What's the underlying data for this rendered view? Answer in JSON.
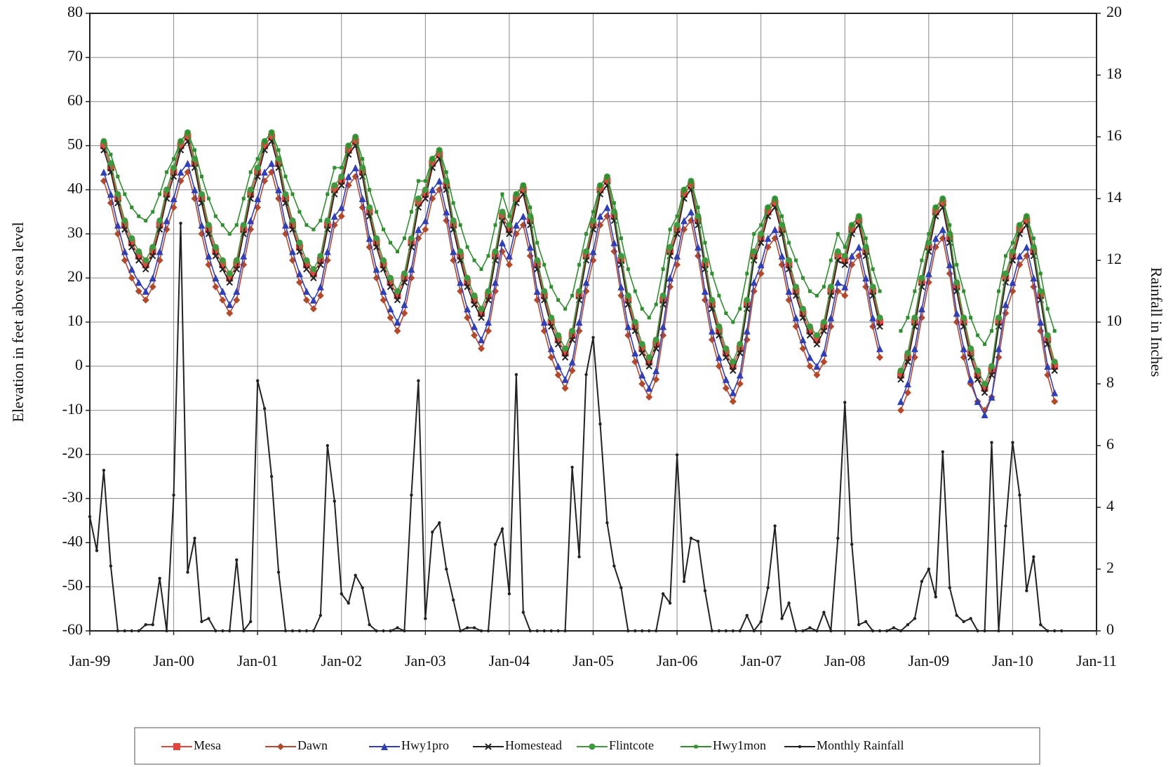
{
  "chart_data": {
    "type": "line",
    "y_label": "Elevation in feet above sea level",
    "y2_label": "Rainfall in Inches",
    "xlim": [
      "1999-01",
      "2011-01"
    ],
    "xticks": [
      {
        "value": "1999-01",
        "label": "Jan-99"
      },
      {
        "value": "2000-01",
        "label": "Jan-00"
      },
      {
        "value": "2001-01",
        "label": "Jan-01"
      },
      {
        "value": "2002-01",
        "label": "Jan-02"
      },
      {
        "value": "2003-01",
        "label": "Jan-03"
      },
      {
        "value": "2004-01",
        "label": "Jan-04"
      },
      {
        "value": "2005-01",
        "label": "Jan-05"
      },
      {
        "value": "2006-01",
        "label": "Jan-06"
      },
      {
        "value": "2007-01",
        "label": "Jan-07"
      },
      {
        "value": "2008-01",
        "label": "Jan-08"
      },
      {
        "value": "2009-01",
        "label": "Jan-09"
      },
      {
        "value": "2010-01",
        "label": "Jan-10"
      },
      {
        "value": "2011-01",
        "label": "Jan-11"
      }
    ],
    "ylim": [
      -60,
      80
    ],
    "yticks": [
      -60,
      -50,
      -40,
      -30,
      -20,
      -10,
      0,
      10,
      20,
      30,
      40,
      50,
      60,
      70,
      80
    ],
    "y2lim": [
      0,
      20
    ],
    "y2ticks": [
      0,
      2,
      4,
      6,
      8,
      10,
      12,
      14,
      16,
      18,
      20
    ],
    "grid": true,
    "legend": "bottom",
    "x": [
      "1999-01",
      "1999-02",
      "1999-03",
      "1999-04",
      "1999-05",
      "1999-06",
      "1999-07",
      "1999-08",
      "1999-09",
      "1999-10",
      "1999-11",
      "1999-12",
      "2000-01",
      "2000-02",
      "2000-03",
      "2000-04",
      "2000-05",
      "2000-06",
      "2000-07",
      "2000-08",
      "2000-09",
      "2000-10",
      "2000-11",
      "2000-12",
      "2001-01",
      "2001-02",
      "2001-03",
      "2001-04",
      "2001-05",
      "2001-06",
      "2001-07",
      "2001-08",
      "2001-09",
      "2001-10",
      "2001-11",
      "2001-12",
      "2002-01",
      "2002-02",
      "2002-03",
      "2002-04",
      "2002-05",
      "2002-06",
      "2002-07",
      "2002-08",
      "2002-09",
      "2002-10",
      "2002-11",
      "2002-12",
      "2003-01",
      "2003-02",
      "2003-03",
      "2003-04",
      "2003-05",
      "2003-06",
      "2003-07",
      "2003-08",
      "2003-09",
      "2003-10",
      "2003-11",
      "2003-12",
      "2004-01",
      "2004-02",
      "2004-03",
      "2004-04",
      "2004-05",
      "2004-06",
      "2004-07",
      "2004-08",
      "2004-09",
      "2004-10",
      "2004-11",
      "2004-12",
      "2005-01",
      "2005-02",
      "2005-03",
      "2005-04",
      "2005-05",
      "2005-06",
      "2005-07",
      "2005-08",
      "2005-09",
      "2005-10",
      "2005-11",
      "2005-12",
      "2006-01",
      "2006-02",
      "2006-03",
      "2006-04",
      "2006-05",
      "2006-06",
      "2006-07",
      "2006-08",
      "2006-09",
      "2006-10",
      "2006-11",
      "2006-12",
      "2007-01",
      "2007-02",
      "2007-03",
      "2007-04",
      "2007-05",
      "2007-06",
      "2007-07",
      "2007-08",
      "2007-09",
      "2007-10",
      "2007-11",
      "2007-12",
      "2008-01",
      "2008-02",
      "2008-03",
      "2008-04",
      "2008-05",
      "2008-06",
      "2008-07",
      "2008-08",
      "2008-09",
      "2008-10",
      "2008-11",
      "2008-12",
      "2009-01",
      "2009-02",
      "2009-03",
      "2009-04",
      "2009-05",
      "2009-06",
      "2009-07",
      "2009-08",
      "2009-09",
      "2009-10",
      "2009-11",
      "2009-12",
      "2010-01",
      "2010-02",
      "2010-03",
      "2010-04",
      "2010-05",
      "2010-06",
      "2010-07",
      "2010-08"
    ],
    "series": [
      {
        "name": "Mesa",
        "color": "#e8453c",
        "marker": "square",
        "values": [
          null,
          null,
          50,
          45,
          38,
          32,
          28,
          25,
          23,
          26,
          32,
          39,
          44,
          50,
          52,
          46,
          38,
          31,
          26,
          23,
          20,
          23,
          31,
          39,
          44,
          50,
          52,
          46,
          38,
          32,
          27,
          23,
          21,
          24,
          32,
          40,
          42,
          49,
          51,
          44,
          35,
          28,
          23,
          19,
          16,
          20,
          28,
          37,
          39,
          46,
          48,
          41,
          32,
          25,
          19,
          15,
          12,
          16,
          25,
          34,
          31,
          38,
          40,
          33,
          23,
          16,
          10,
          6,
          3,
          7,
          16,
          25,
          32,
          40,
          42,
          34,
          24,
          15,
          9,
          4,
          1,
          5,
          15,
          26,
          31,
          39,
          41,
          33,
          23,
          14,
          8,
          3,
          0,
          4,
          14,
          25,
          29,
          35,
          37,
          31,
          23,
          17,
          12,
          8,
          6,
          9,
          17,
          25,
          24,
          31,
          33,
          26,
          17,
          10,
          null,
          null,
          -2,
          2,
          10,
          19,
          27,
          35,
          37,
          29,
          18,
          10,
          3,
          -2,
          -5,
          -1,
          10,
          20,
          25,
          31,
          33,
          26,
          16,
          6,
          0,
          null
        ]
      },
      {
        "name": "Dawn",
        "color": "#b5482a",
        "marker": "diamond",
        "values": [
          null,
          null,
          42,
          37,
          30,
          24,
          20,
          17,
          15,
          18,
          24,
          31,
          36,
          42,
          44,
          38,
          30,
          23,
          18,
          15,
          12,
          15,
          23,
          31,
          36,
          42,
          44,
          38,
          30,
          24,
          19,
          15,
          13,
          16,
          24,
          32,
          34,
          41,
          43,
          36,
          27,
          20,
          15,
          11,
          8,
          12,
          20,
          29,
          31,
          38,
          40,
          33,
          24,
          17,
          11,
          7,
          4,
          8,
          17,
          26,
          23,
          30,
          32,
          25,
          15,
          8,
          2,
          -2,
          -5,
          -1,
          8,
          17,
          24,
          32,
          34,
          26,
          16,
          7,
          1,
          -4,
          -7,
          -3,
          7,
          18,
          23,
          31,
          33,
          25,
          15,
          6,
          0,
          -5,
          -8,
          -4,
          6,
          17,
          21,
          27,
          29,
          23,
          15,
          9,
          4,
          0,
          -2,
          1,
          9,
          17,
          16,
          23,
          25,
          18,
          9,
          2,
          null,
          null,
          -10,
          -6,
          2,
          11,
          19,
          27,
          29,
          21,
          10,
          2,
          -4,
          -8,
          -10,
          -7,
          2,
          12,
          17,
          23,
          25,
          18,
          8,
          -2,
          -8,
          null
        ]
      },
      {
        "name": "Hwy1pro",
        "color": "#2e3fb8",
        "marker": "triangle",
        "values": [
          null,
          null,
          44,
          39,
          32,
          26,
          22,
          19,
          17,
          20,
          26,
          33,
          38,
          44,
          46,
          40,
          32,
          25,
          20,
          17,
          14,
          17,
          25,
          33,
          38,
          44,
          46,
          40,
          32,
          26,
          21,
          17,
          15,
          18,
          26,
          34,
          36,
          43,
          45,
          38,
          29,
          22,
          17,
          13,
          10,
          14,
          22,
          31,
          33,
          40,
          42,
          35,
          26,
          19,
          13,
          9,
          6,
          10,
          19,
          28,
          25,
          32,
          34,
          27,
          17,
          10,
          4,
          0,
          -3,
          1,
          10,
          19,
          26,
          34,
          36,
          28,
          18,
          9,
          3,
          -2,
          -5,
          -1,
          9,
          20,
          25,
          33,
          35,
          27,
          17,
          8,
          2,
          -3,
          -6,
          -2,
          8,
          19,
          23,
          29,
          31,
          25,
          17,
          11,
          6,
          2,
          0,
          3,
          11,
          19,
          18,
          25,
          27,
          20,
          11,
          4,
          null,
          null,
          -8,
          -4,
          4,
          13,
          21,
          29,
          31,
          23,
          12,
          4,
          -3,
          -8,
          -11,
          -7,
          4,
          14,
          19,
          25,
          27,
          20,
          10,
          0,
          -6,
          null
        ]
      },
      {
        "name": "Homestead",
        "color": "#222222",
        "marker": "x",
        "values": [
          null,
          null,
          49,
          44,
          37,
          31,
          27,
          24,
          22,
          25,
          31,
          38,
          43,
          49,
          51,
          45,
          37,
          30,
          25,
          22,
          19,
          22,
          30,
          38,
          43,
          49,
          51,
          45,
          37,
          31,
          26,
          22,
          20,
          23,
          31,
          39,
          41,
          48,
          50,
          43,
          34,
          27,
          22,
          18,
          15,
          19,
          27,
          36,
          38,
          45,
          47,
          40,
          31,
          24,
          18,
          14,
          11,
          15,
          24,
          33,
          30,
          37,
          39,
          32,
          22,
          15,
          9,
          5,
          2,
          6,
          15,
          24,
          31,
          39,
          41,
          33,
          23,
          14,
          8,
          3,
          0,
          4,
          14,
          25,
          30,
          38,
          40,
          32,
          22,
          13,
          7,
          2,
          -1,
          3,
          13,
          24,
          28,
          34,
          36,
          30,
          22,
          16,
          11,
          7,
          5,
          8,
          16,
          24,
          23,
          30,
          32,
          25,
          16,
          9,
          null,
          null,
          -3,
          1,
          9,
          18,
          26,
          34,
          36,
          28,
          17,
          9,
          2,
          -3,
          -6,
          -2,
          9,
          19,
          24,
          30,
          32,
          25,
          15,
          5,
          -1,
          null
        ]
      },
      {
        "name": "Flintcote",
        "color": "#3f9a3f",
        "marker": "circle",
        "values": [
          null,
          null,
          51,
          46,
          39,
          33,
          29,
          26,
          24,
          27,
          33,
          40,
          45,
          51,
          53,
          47,
          39,
          32,
          27,
          24,
          21,
          24,
          32,
          40,
          45,
          51,
          53,
          47,
          39,
          33,
          28,
          24,
          22,
          25,
          33,
          41,
          43,
          50,
          52,
          45,
          36,
          29,
          24,
          20,
          17,
          21,
          29,
          38,
          40,
          47,
          49,
          42,
          33,
          26,
          20,
          16,
          13,
          17,
          26,
          35,
          32,
          39,
          41,
          34,
          24,
          17,
          11,
          7,
          4,
          8,
          17,
          26,
          33,
          41,
          43,
          35,
          25,
          16,
          10,
          5,
          2,
          6,
          16,
          27,
          32,
          40,
          42,
          34,
          24,
          15,
          9,
          4,
          1,
          5,
          15,
          26,
          30,
          36,
          38,
          32,
          24,
          18,
          13,
          9,
          7,
          10,
          18,
          26,
          25,
          32,
          34,
          27,
          18,
          11,
          null,
          null,
          -1,
          3,
          11,
          20,
          28,
          36,
          38,
          30,
          19,
          11,
          4,
          -1,
          -4,
          0,
          11,
          21,
          26,
          32,
          34,
          27,
          17,
          7,
          1,
          null
        ]
      },
      {
        "name": "Hwy1mon",
        "color": "#2f8f2f",
        "marker": "smallsquare",
        "values": [
          null,
          null,
          51,
          48,
          43,
          39,
          36,
          34,
          33,
          35,
          39,
          44,
          47,
          51,
          53,
          49,
          43,
          38,
          34,
          32,
          30,
          32,
          38,
          44,
          47,
          51,
          53,
          49,
          43,
          39,
          35,
          32,
          31,
          33,
          39,
          45,
          45,
          50,
          52,
          47,
          40,
          35,
          31,
          28,
          26,
          29,
          35,
          42,
          42,
          47,
          49,
          44,
          37,
          32,
          27,
          24,
          22,
          25,
          32,
          39,
          34,
          39,
          41,
          36,
          28,
          23,
          18,
          15,
          13,
          16,
          23,
          30,
          35,
          41,
          43,
          37,
          29,
          22,
          17,
          13,
          11,
          14,
          22,
          31,
          34,
          40,
          42,
          36,
          28,
          21,
          16,
          12,
          10,
          13,
          21,
          30,
          32,
          36,
          38,
          34,
          28,
          24,
          20,
          17,
          16,
          18,
          24,
          30,
          27,
          32,
          34,
          29,
          22,
          17,
          null,
          null,
          8,
          11,
          17,
          24,
          30,
          36,
          38,
          32,
          23,
          17,
          11,
          7,
          5,
          8,
          17,
          25,
          28,
          32,
          34,
          29,
          21,
          13,
          8,
          null
        ]
      },
      {
        "name": "Monthly Rainfall",
        "color": "#222222",
        "marker": "dot",
        "axis": "y2",
        "values": [
          3.7,
          2.6,
          5.2,
          2.1,
          0,
          0,
          0,
          0,
          0.2,
          0.2,
          1.7,
          0,
          4.4,
          13.2,
          1.9,
          3.0,
          0.3,
          0.4,
          0,
          0,
          0,
          2.3,
          0,
          0.3,
          8.1,
          7.2,
          5.0,
          1.9,
          0,
          0,
          0,
          0,
          0,
          0.5,
          6.0,
          4.2,
          1.2,
          0.9,
          1.8,
          1.4,
          0.2,
          0,
          0,
          0,
          0.1,
          0,
          4.4,
          8.1,
          0.4,
          3.2,
          3.5,
          2.0,
          1.0,
          0,
          0.1,
          0.1,
          0,
          0,
          2.8,
          3.3,
          1.2,
          8.3,
          0.6,
          0,
          0,
          0,
          0,
          0,
          0,
          5.3,
          2.4,
          8.3,
          9.5,
          6.7,
          3.5,
          2.1,
          1.4,
          0,
          0,
          0,
          0,
          0,
          1.2,
          0.9,
          5.7,
          1.6,
          3.0,
          2.9,
          1.3,
          0,
          0,
          0,
          0,
          0,
          0.5,
          0,
          0.3,
          1.4,
          3.4,
          0.4,
          0.9,
          0,
          0,
          0.1,
          0,
          0.6,
          0,
          3.0,
          7.4,
          2.8,
          0.2,
          0.3,
          0,
          0,
          0,
          0.1,
          0,
          0.2,
          0.4,
          1.6,
          2.0,
          1.1,
          5.8,
          1.4,
          0.5,
          0.3,
          0.4,
          0,
          0,
          6.1,
          0,
          3.4,
          6.1,
          4.4,
          1.3,
          2.4,
          0.2,
          0,
          0,
          0
        ]
      }
    ]
  }
}
